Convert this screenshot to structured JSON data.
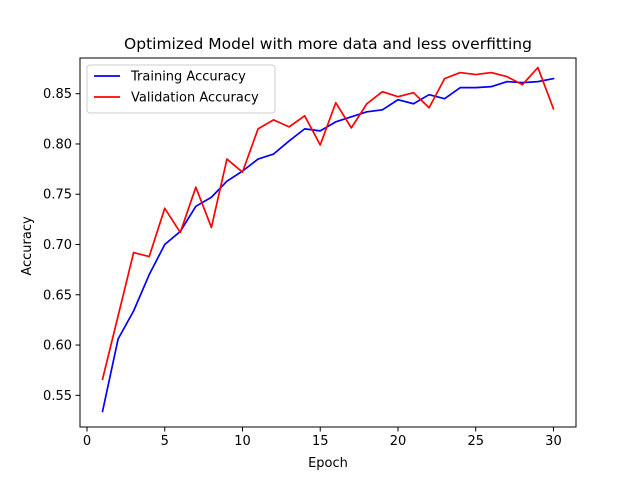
{
  "chart_data": {
    "type": "line",
    "title": "Optimized Model with more data and less overfitting",
    "xlabel": "Epoch",
    "ylabel": "Accuracy",
    "xlim": [
      -0.45,
      31.45
    ],
    "ylim": [
      0.5185,
      0.8855
    ],
    "xticks": [
      0,
      5,
      10,
      15,
      20,
      25,
      30
    ],
    "xtick_labels": [
      "0",
      "5",
      "10",
      "15",
      "20",
      "25",
      "30"
    ],
    "yticks": [
      0.55,
      0.6,
      0.65,
      0.7,
      0.75,
      0.8,
      0.85
    ],
    "ytick_labels": [
      "0.55",
      "0.60",
      "0.65",
      "0.70",
      "0.75",
      "0.80",
      "0.85"
    ],
    "grid": false,
    "legend_position": "upper-left",
    "x": [
      1,
      2,
      3,
      4,
      5,
      6,
      7,
      8,
      9,
      10,
      11,
      12,
      13,
      14,
      15,
      16,
      17,
      18,
      19,
      20,
      21,
      22,
      23,
      24,
      25,
      26,
      27,
      28,
      29,
      30
    ],
    "series": [
      {
        "name": "Training Accuracy",
        "color": "#0000ff",
        "values": [
          0.534,
          0.606,
          0.634,
          0.67,
          0.7,
          0.713,
          0.738,
          0.747,
          0.763,
          0.773,
          0.785,
          0.79,
          0.803,
          0.815,
          0.813,
          0.822,
          0.827,
          0.832,
          0.834,
          0.844,
          0.84,
          0.849,
          0.845,
          0.856,
          0.856,
          0.857,
          0.862,
          0.861,
          0.862,
          0.865
        ]
      },
      {
        "name": "Validation Accuracy",
        "color": "#ff0000",
        "values": [
          0.566,
          0.629,
          0.692,
          0.688,
          0.736,
          0.712,
          0.757,
          0.717,
          0.785,
          0.772,
          0.815,
          0.824,
          0.817,
          0.828,
          0.799,
          0.841,
          0.816,
          0.84,
          0.852,
          0.847,
          0.851,
          0.836,
          0.865,
          0.871,
          0.869,
          0.871,
          0.867,
          0.859,
          0.876,
          0.835
        ]
      }
    ]
  }
}
